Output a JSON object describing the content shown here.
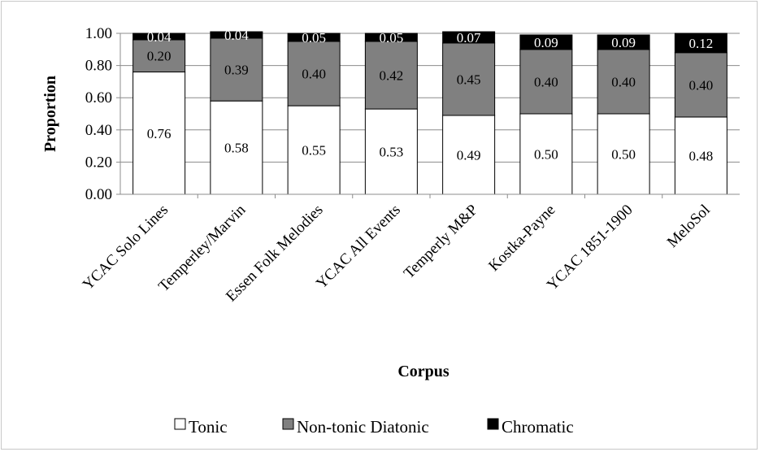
{
  "chart_data": {
    "type": "bar",
    "stacked": true,
    "categories": [
      "YCAC Solo Lines",
      "Temperley/Marvin",
      "Essen Folk Melodies",
      "YCAC All Events",
      "Temperly M&P",
      "Kostka-Payne",
      "YCAC 1851-1900",
      "MeloSol"
    ],
    "series": [
      {
        "name": "Tonic",
        "color": "#ffffff",
        "values": [
          0.76,
          0.58,
          0.55,
          0.53,
          0.49,
          0.5,
          0.5,
          0.48
        ],
        "labels": [
          "0.76",
          "0.58",
          "0.55",
          "0.53",
          "0.49",
          "0.50",
          "0.50",
          "0.48"
        ]
      },
      {
        "name": "Non-tonic Diatonic",
        "color": "#808080",
        "values": [
          0.2,
          0.39,
          0.4,
          0.42,
          0.45,
          0.4,
          0.4,
          0.4
        ],
        "labels": [
          "0.20",
          "0.39",
          "0.40",
          "0.42",
          "0.45",
          "0.40",
          "0.40",
          "0.40"
        ]
      },
      {
        "name": "Chromatic",
        "color": "#000000",
        "values": [
          0.04,
          0.04,
          0.05,
          0.05,
          0.07,
          0.09,
          0.09,
          0.12
        ],
        "labels": [
          "0.04",
          "0.04",
          "0.05",
          "0.05",
          "0.07",
          "0.09",
          "0.09",
          "0.12"
        ]
      }
    ],
    "xlabel": "Corpus",
    "ylabel": "Proportion",
    "ylim": [
      0,
      1
    ],
    "yticks": [
      "0.00",
      "0.20",
      "0.40",
      "0.60",
      "0.80",
      "1.00"
    ],
    "grid": true,
    "legend": "bottom"
  }
}
